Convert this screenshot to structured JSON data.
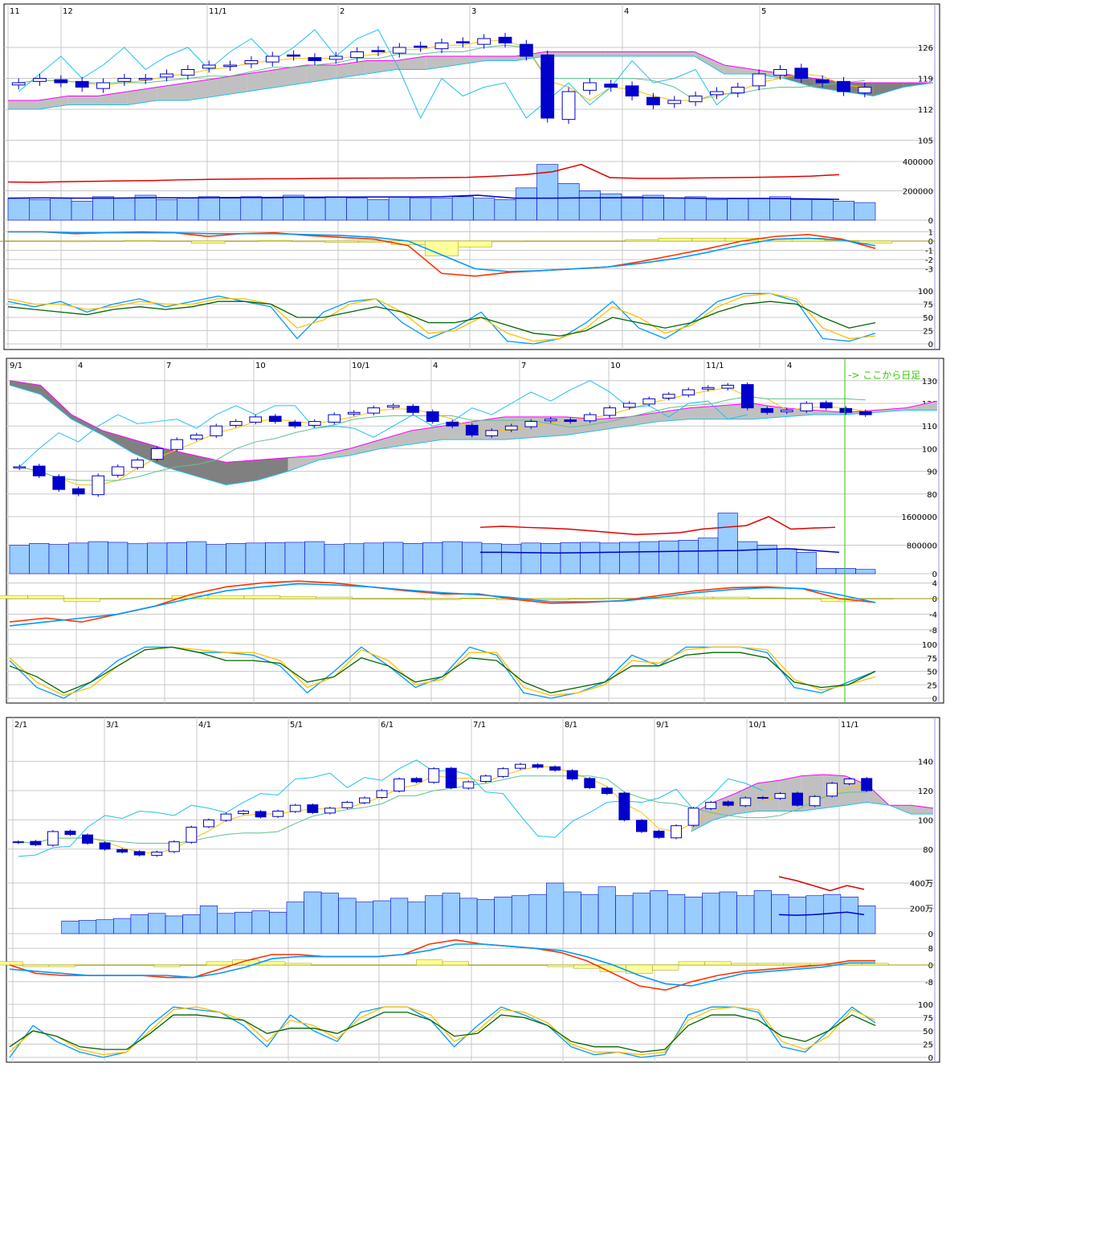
{
  "chart_data": [
    {
      "type": "candlestick",
      "x_labels": [
        "11",
        "12",
        "11/1",
        "2",
        "3",
        "4",
        "5"
      ],
      "price_ticks": [
        126,
        119,
        112,
        105
      ],
      "volume_ticks": [
        "400000",
        "200000",
        "0"
      ],
      "macd_ticks": [
        1,
        0,
        -1,
        -2,
        -3
      ],
      "stoch_ticks": [
        100,
        75,
        50,
        25,
        0
      ],
      "close": [
        118,
        119,
        118,
        117,
        118,
        119,
        119,
        120,
        121,
        122,
        122,
        123,
        124,
        124,
        123,
        124,
        125,
        125,
        126,
        126,
        127,
        127,
        128,
        127,
        124,
        110,
        116,
        118,
        117,
        115,
        113,
        114,
        115,
        116,
        117,
        120,
        121,
        119,
        118,
        116,
        117
      ],
      "volume": [
        150000,
        140000,
        150000,
        130000,
        160000,
        150000,
        170000,
        140000,
        150000,
        160000,
        150000,
        160000,
        150000,
        170000,
        150000,
        160000,
        150000,
        140000,
        160000,
        150000,
        150000,
        160000,
        150000,
        140000,
        220000,
        380000,
        250000,
        200000,
        180000,
        160000,
        170000,
        150000,
        160000,
        140000,
        150000,
        150000,
        160000,
        140000,
        140000,
        130000,
        120000
      ],
      "volume_ma_long": [
        260000,
        258000,
        262000,
        265000,
        268000,
        270000,
        275000,
        278000,
        280000,
        282000,
        283000,
        285000,
        286000,
        287000,
        288000,
        290000,
        292000,
        300000,
        310000,
        330000,
        380000,
        290000,
        285000,
        285000,
        288000,
        290000,
        292000,
        295000,
        300000,
        310000
      ],
      "volume_ma_short": [
        150000,
        152000,
        150000,
        151000,
        153000,
        152000,
        154000,
        155000,
        156000,
        157000,
        158000,
        158000,
        160000,
        170000,
        150000,
        150000,
        152000,
        153000,
        152000,
        150000,
        148000,
        148000,
        146000,
        142000
      ],
      "cloud_upper": [
        114,
        114,
        115,
        115,
        116,
        117,
        118,
        119,
        120,
        121,
        122,
        122,
        123,
        123,
        124,
        124,
        124,
        124,
        125,
        125,
        125,
        125,
        125,
        125,
        122,
        121,
        120,
        119,
        118,
        118,
        118,
        118
      ],
      "cloud_lower": [
        112,
        112,
        113,
        113,
        113,
        114,
        114,
        115,
        116,
        117,
        118,
        119,
        120,
        121,
        121,
        122,
        123,
        123,
        124,
        124,
        124,
        124,
        124,
        124,
        120,
        120,
        119,
        117,
        116,
        115,
        117,
        118
      ],
      "macd": [
        1,
        1,
        0.8,
        0.9,
        1,
        0.9,
        0.5,
        0.8,
        0.9,
        0.6,
        0.4,
        0.2,
        -0.5,
        -3.5,
        -3.8,
        -3.4,
        -3.2,
        -3,
        -2.8,
        -2.2,
        -1.5,
        -0.8,
        0,
        0.5,
        0.7,
        0.2,
        -0.8
      ],
      "macd_signal": [
        1,
        1,
        0.9,
        0.9,
        0.9,
        0.9,
        0.8,
        0.8,
        0.8,
        0.7,
        0.6,
        0.4,
        0.0,
        -1.5,
        -3,
        -3.3,
        -3.2,
        -3,
        -2.8,
        -2.4,
        -1.9,
        -1.2,
        -0.4,
        0.2,
        0.3,
        0.1,
        -0.5
      ],
      "stoch_k": [
        80,
        70,
        80,
        60,
        75,
        85,
        70,
        80,
        90,
        80,
        70,
        10,
        60,
        80,
        85,
        40,
        10,
        30,
        60,
        5,
        0,
        10,
        40,
        80,
        30,
        10,
        40,
        80,
        95,
        95,
        80,
        10,
        5,
        20
      ],
      "stoch_d": [
        85,
        75,
        75,
        65,
        70,
        80,
        75,
        75,
        85,
        85,
        75,
        30,
        45,
        75,
        85,
        60,
        20,
        25,
        50,
        20,
        5,
        10,
        30,
        70,
        50,
        20,
        35,
        70,
        90,
        95,
        85,
        30,
        10,
        15
      ],
      "stoch_slow": [
        70,
        65,
        60,
        55,
        65,
        70,
        65,
        70,
        80,
        80,
        75,
        50,
        50,
        60,
        70,
        60,
        40,
        40,
        50,
        35,
        20,
        15,
        25,
        50,
        40,
        30,
        40,
        60,
        75,
        80,
        75,
        50,
        30,
        40
      ]
    },
    {
      "type": "candlestick",
      "x_labels": [
        "9/1",
        "4",
        "7",
        "10",
        "10/1",
        "4",
        "7",
        "10",
        "11/1",
        "4"
      ],
      "annotation": "-> ここから日足",
      "price_ticks": [
        130,
        120,
        110,
        100,
        90,
        80
      ],
      "volume_ticks": [
        "1600000",
        "800000",
        "0"
      ],
      "macd_ticks": [
        4,
        0,
        -4,
        -8
      ],
      "stoch_ticks": [
        100,
        75,
        50,
        25,
        0
      ],
      "close": [
        92,
        88,
        82,
        80,
        88,
        92,
        95,
        100,
        104,
        106,
        110,
        112,
        114,
        112,
        110,
        112,
        115,
        116,
        118,
        119,
        116,
        112,
        110,
        106,
        108,
        110,
        112,
        113,
        112,
        115,
        118,
        120,
        122,
        124,
        126,
        127,
        128,
        118,
        116,
        117,
        120,
        118,
        116,
        115
      ],
      "volume": [
        800000,
        850000,
        820000,
        860000,
        900000,
        880000,
        840000,
        860000,
        870000,
        900000,
        820000,
        850000,
        860000,
        870000,
        880000,
        900000,
        820000,
        840000,
        860000,
        880000,
        850000,
        870000,
        900000,
        880000,
        840000,
        820000,
        860000,
        850000,
        870000,
        880000,
        860000,
        880000,
        900000,
        920000,
        940000,
        1000000,
        1700000,
        900000,
        800000,
        700000,
        600000,
        150000,
        150000,
        120000
      ],
      "volume_ma_long": [
        1300000,
        1330000,
        1300000,
        1280000,
        1250000,
        1200000,
        1150000,
        1100000,
        1120000,
        1150000,
        1250000,
        1300000,
        1350000,
        1600000,
        1250000,
        1280000,
        1300000
      ],
      "volume_ma_short": [
        600000,
        600000,
        590000,
        580000,
        590000,
        600000,
        610000,
        620000,
        630000,
        640000,
        650000,
        680000,
        700000,
        650000,
        600000
      ],
      "cloud_upper": [
        130,
        128,
        115,
        108,
        104,
        100,
        97,
        94,
        95,
        96,
        97,
        100,
        104,
        108,
        110,
        112,
        114,
        114,
        114,
        113,
        114,
        116,
        118,
        119,
        120,
        118,
        117,
        116,
        117,
        118,
        121
      ],
      "cloud_lower": [
        128,
        124,
        113,
        106,
        98,
        92,
        88,
        84,
        86,
        90,
        95,
        97,
        100,
        102,
        104,
        104,
        104,
        105,
        106,
        108,
        110,
        112,
        113,
        113,
        113,
        114,
        115,
        115,
        116,
        117,
        117
      ],
      "macd": [
        -6,
        -5,
        -6,
        -4,
        -2,
        1,
        3,
        4,
        4.5,
        4,
        3,
        2,
        1.2,
        1.2,
        -0.2,
        -1.2,
        -1,
        -0.5,
        0.8,
        2,
        2.8,
        3,
        2.5,
        0,
        -1
      ],
      "macd_signal": [
        -7,
        -6,
        -5,
        -4,
        -2,
        0,
        2,
        3,
        3.8,
        3.5,
        3,
        2.2,
        1.5,
        1,
        0.2,
        -0.8,
        -0.8,
        -0.6,
        0.3,
        1.5,
        2.3,
        2.8,
        2.6,
        1,
        -1
      ],
      "stoch_k": [
        70,
        20,
        0,
        30,
        70,
        95,
        95,
        85,
        85,
        80,
        60,
        10,
        50,
        95,
        60,
        20,
        40,
        95,
        80,
        10,
        0,
        10,
        30,
        80,
        60,
        95,
        95,
        95,
        85,
        20,
        10,
        30,
        50
      ],
      "stoch_d": [
        75,
        30,
        5,
        20,
        60,
        90,
        95,
        90,
        85,
        85,
        70,
        20,
        40,
        90,
        70,
        25,
        35,
        85,
        85,
        20,
        5,
        10,
        25,
        70,
        65,
        90,
        95,
        95,
        90,
        35,
        15,
        25,
        40
      ],
      "stoch_slow": [
        60,
        40,
        10,
        30,
        60,
        90,
        95,
        85,
        70,
        70,
        65,
        30,
        40,
        75,
        60,
        30,
        40,
        75,
        70,
        30,
        10,
        20,
        30,
        60,
        60,
        80,
        85,
        85,
        75,
        30,
        20,
        25,
        50
      ]
    },
    {
      "type": "candlestick",
      "x_labels": [
        "2/1",
        "3/1",
        "4/1",
        "5/1",
        "6/1",
        "7/1",
        "8/1",
        "9/1",
        "10/1",
        "11/1"
      ],
      "price_ticks": [
        140,
        120,
        100,
        80
      ],
      "volume_ticks": [
        "400万",
        "200万",
        "0"
      ],
      "macd_ticks": [
        8,
        0,
        -8
      ],
      "stoch_ticks": [
        100,
        75,
        50,
        25,
        0
      ],
      "close": [
        85,
        83,
        92,
        90,
        84,
        80,
        78,
        76,
        78,
        85,
        95,
        100,
        104,
        106,
        102,
        106,
        110,
        105,
        108,
        112,
        115,
        120,
        128,
        126,
        135,
        122,
        126,
        130,
        135,
        138,
        136,
        134,
        128,
        122,
        118,
        100,
        92,
        88,
        96,
        108,
        112,
        110,
        115,
        115,
        118,
        110,
        116,
        125,
        128,
        120
      ],
      "volume": [
        null,
        null,
        null,
        1000000,
        1050000,
        1100000,
        1200000,
        1500000,
        1600000,
        1400000,
        1500000,
        2200000,
        1600000,
        1700000,
        1800000,
        1700000,
        2500000,
        3300000,
        3200000,
        2800000,
        2500000,
        2600000,
        2800000,
        2500000,
        3000000,
        3200000,
        2800000,
        2700000,
        2900000,
        3000000,
        3100000,
        4000000,
        3300000,
        3100000,
        3700000,
        3000000,
        3200000,
        3400000,
        3100000,
        2900000,
        3200000,
        3300000,
        3000000,
        3400000,
        3100000,
        2900000,
        3000000,
        3100000,
        2900000,
        2200000
      ],
      "volume_ma_long": [
        4500000,
        4200000,
        3800000,
        3400000,
        3800000,
        3500000
      ],
      "volume_ma_short": [
        1500000,
        1450000,
        1500000,
        1600000,
        1700000,
        1500000
      ],
      "cloud_upper": [
        null,
        null,
        null,
        null,
        null,
        null,
        null,
        null,
        null,
        null,
        null,
        null,
        null,
        null,
        null,
        null,
        null,
        null,
        null,
        null,
        null,
        null,
        null,
        null,
        null,
        null,
        null,
        null,
        null,
        null,
        null,
        104,
        112,
        118,
        125,
        127,
        130,
        131,
        130,
        124,
        110,
        110,
        108
      ],
      "cloud_lower": [
        null,
        null,
        null,
        null,
        null,
        null,
        null,
        null,
        null,
        null,
        null,
        null,
        null,
        null,
        null,
        null,
        null,
        null,
        null,
        null,
        null,
        null,
        null,
        null,
        null,
        null,
        null,
        null,
        null,
        null,
        null,
        92,
        100,
        104,
        106,
        106,
        106,
        108,
        110,
        112,
        110,
        104,
        104
      ],
      "macd": [
        0,
        -4,
        -5,
        -5,
        -5,
        -5,
        -6,
        -6,
        -2,
        2,
        5,
        5,
        4,
        4,
        4,
        5,
        10,
        12,
        10,
        9,
        8,
        6,
        2,
        -4,
        -10,
        -12,
        -8,
        -5,
        -3,
        -2,
        -1,
        0,
        2,
        2
      ],
      "macd_signal": [
        -2,
        -3,
        -4,
        -5,
        -5,
        -5,
        -5,
        -6,
        -4,
        -1,
        3,
        4,
        4,
        4,
        4,
        5,
        7,
        10,
        10,
        9,
        8,
        7,
        4,
        0,
        -5,
        -9,
        -10,
        -7,
        -4,
        -3,
        -2,
        -1,
        1,
        1
      ],
      "stoch_k": [
        0,
        60,
        30,
        10,
        0,
        10,
        60,
        95,
        90,
        85,
        60,
        20,
        80,
        50,
        30,
        85,
        95,
        95,
        70,
        20,
        60,
        95,
        80,
        60,
        20,
        5,
        10,
        0,
        5,
        80,
        95,
        95,
        85,
        20,
        10,
        50,
        95,
        65
      ],
      "stoch_d": [
        10,
        50,
        40,
        15,
        5,
        10,
        50,
        90,
        95,
        85,
        70,
        30,
        70,
        60,
        35,
        75,
        95,
        95,
        80,
        30,
        50,
        90,
        85,
        65,
        25,
        10,
        10,
        5,
        10,
        70,
        90,
        95,
        90,
        30,
        15,
        40,
        90,
        70
      ],
      "stoch_slow": [
        20,
        50,
        40,
        20,
        15,
        15,
        45,
        80,
        80,
        75,
        70,
        45,
        55,
        55,
        45,
        65,
        85,
        85,
        70,
        40,
        45,
        80,
        75,
        60,
        30,
        20,
        20,
        10,
        15,
        60,
        80,
        80,
        70,
        40,
        30,
        50,
        80,
        60
      ]
    }
  ],
  "colors": {
    "up_candle": "#ffffff",
    "down_candle": "#0000cc",
    "volume_bar": "#99ccff",
    "cloud": "#c0c0c0",
    "cloud_inverted": "#808080",
    "cloud_edge": "#ff00ff",
    "tenkan": "#ffc000",
    "kijun": "#60c090",
    "chikou": "#20c0f0",
    "macd": "#ff3300",
    "signal": "#0099ff",
    "histogram": "#ffff99",
    "stoch_k": "#0099ff",
    "stoch_d": "#ffc000",
    "stoch_slow": "#006600",
    "annotation": "#33cc00"
  }
}
